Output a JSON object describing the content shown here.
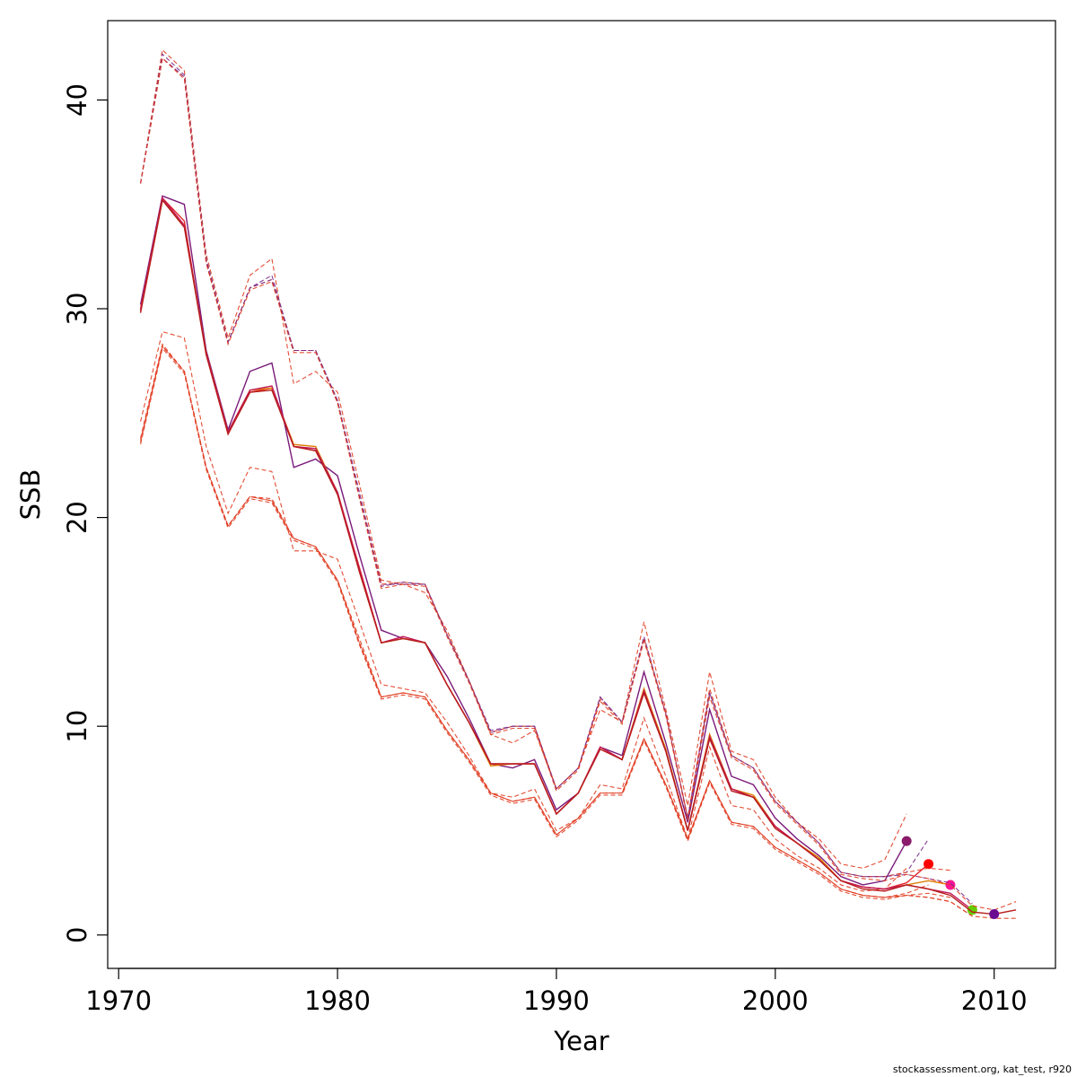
{
  "chart_data": {
    "type": "line",
    "xlabel": "Year",
    "ylabel": "SSB",
    "xlim": [
      1969.5,
      2012.8
    ],
    "ylim": [
      -1.6,
      43.8
    ],
    "xticks": [
      1970,
      1980,
      1990,
      2000,
      2010
    ],
    "yticks": [
      0,
      10,
      20,
      30,
      40
    ],
    "grid": false,
    "legend": "none",
    "colors": {
      "solid": "#e3242b",
      "dashed": "#e03a1e",
      "purple": "#7a2a8a",
      "orange": "#e07b00"
    },
    "years": [
      1971,
      1972,
      1973,
      1974,
      1975,
      1976,
      1977,
      1978,
      1979,
      1980,
      1981,
      1982,
      1983,
      1984,
      1985,
      1986,
      1987,
      1988,
      1989,
      1990,
      1991,
      1992,
      1993,
      1994,
      1995,
      1996,
      1997,
      1998,
      1999,
      2000,
      2001,
      2002,
      2003,
      2004,
      2005,
      2006,
      2007,
      2008,
      2009,
      2010,
      2011
    ],
    "series": [
      {
        "style": "solid",
        "end_year": 2006,
        "color": "#7a1a7a",
        "marker": true,
        "marker_color": "#8b1a6b",
        "values": [
          30.2,
          35.4,
          35.0,
          28.0,
          24.2,
          27.0,
          27.4,
          22.4,
          22.8,
          22.0,
          18.2,
          14.6,
          14.2,
          14.0,
          12.4,
          10.4,
          8.2,
          8.0,
          8.4,
          6.0,
          6.8,
          9.0,
          8.6,
          12.6,
          9.2,
          5.4,
          10.8,
          7.6,
          7.2,
          5.6,
          4.6,
          3.8,
          2.8,
          2.4,
          2.6,
          4.5
        ],
        "lower": [
          24.6,
          28.9,
          28.6,
          23.4,
          20.2,
          22.4,
          22.2,
          18.4,
          18.4,
          18.0,
          15.0,
          12.0,
          11.8,
          11.6,
          10.2,
          8.6,
          6.8,
          6.6,
          7.0,
          5.0,
          5.6,
          7.2,
          7.0,
          10.4,
          7.6,
          4.6,
          9.0,
          6.2,
          6.0,
          4.6,
          3.8,
          3.2,
          2.4,
          2.1,
          2.2,
          3.2
        ],
        "upper": [
          36.0,
          42.4,
          41.4,
          32.6,
          28.6,
          31.6,
          32.4,
          26.4,
          27.0,
          26.0,
          21.6,
          17.0,
          16.8,
          16.4,
          14.6,
          12.2,
          9.6,
          9.2,
          9.8,
          7.0,
          8.0,
          10.8,
          10.2,
          15.0,
          10.8,
          6.2,
          12.6,
          8.8,
          8.4,
          6.6,
          5.4,
          4.6,
          3.4,
          3.2,
          3.6,
          5.8
        ]
      },
      {
        "style": "solid",
        "end_year": 2007,
        "color": "#e3242b",
        "marker": true,
        "marker_color": "#ff0000",
        "values": [
          30.0,
          35.3,
          34.2,
          27.8,
          24.0,
          26.0,
          26.2,
          23.4,
          23.2,
          21.2,
          17.6,
          14.0,
          14.2,
          14.0,
          12.0,
          10.2,
          8.2,
          8.2,
          8.2,
          5.8,
          6.8,
          9.0,
          8.4,
          11.6,
          8.8,
          5.0,
          9.6,
          7.0,
          6.6,
          5.2,
          4.4,
          3.6,
          2.6,
          2.3,
          2.2,
          2.5,
          3.4
        ],
        "lower": [
          23.8,
          28.3,
          27.0,
          22.4,
          19.6,
          21.0,
          20.9,
          19.0,
          18.6,
          17.0,
          14.2,
          11.4,
          11.6,
          11.4,
          9.8,
          8.4,
          6.8,
          6.4,
          6.6,
          4.8,
          5.6,
          6.8,
          6.8,
          9.4,
          7.2,
          4.6,
          7.4,
          5.4,
          5.2,
          4.2,
          3.6,
          3.0,
          2.2,
          1.9,
          1.8,
          2.0,
          2.4
        ],
        "upper": [
          36.0,
          42.2,
          41.2,
          32.4,
          28.4,
          31.0,
          31.6,
          28.0,
          28.0,
          25.6,
          21.2,
          16.8,
          16.8,
          16.8,
          14.4,
          12.2,
          9.8,
          10.0,
          10.0,
          7.0,
          8.0,
          11.4,
          10.2,
          14.2,
          10.6,
          5.6,
          11.6,
          8.6,
          8.0,
          6.4,
          5.4,
          4.4,
          3.0,
          2.8,
          2.8,
          3.0,
          4.6
        ]
      },
      {
        "style": "solid",
        "end_year": 2008,
        "color": "#e07b00",
        "marker": true,
        "marker_color": "#ff1493",
        "values": [
          29.9,
          35.2,
          34.0,
          27.9,
          24.1,
          26.1,
          26.2,
          23.5,
          23.4,
          21.2,
          17.4,
          14.0,
          14.2,
          14.0,
          12.0,
          10.2,
          8.1,
          8.2,
          8.2,
          5.8,
          6.8,
          9.0,
          8.4,
          11.8,
          8.9,
          5.0,
          9.6,
          7.0,
          6.7,
          5.2,
          4.4,
          3.7,
          2.6,
          2.3,
          2.2,
          2.4,
          2.6,
          2.4
        ],
        "lower": [
          23.7,
          28.2,
          27.0,
          22.4,
          19.6,
          21.0,
          20.8,
          19.0,
          18.6,
          17.0,
          14.0,
          11.4,
          11.6,
          11.4,
          9.8,
          8.4,
          6.8,
          6.4,
          6.6,
          4.8,
          5.6,
          6.8,
          6.8,
          9.4,
          7.2,
          4.6,
          7.4,
          5.4,
          5.2,
          4.2,
          3.6,
          3.0,
          2.2,
          1.9,
          1.8,
          1.9,
          2.0,
          1.8
        ],
        "upper": [
          36.0,
          42.0,
          41.1,
          32.2,
          28.4,
          31.0,
          31.4,
          28.0,
          28.0,
          25.5,
          21.0,
          16.8,
          16.9,
          16.8,
          14.4,
          12.2,
          9.7,
          10.0,
          10.0,
          7.0,
          8.0,
          11.3,
          10.2,
          14.2,
          10.6,
          5.6,
          11.8,
          8.6,
          8.0,
          6.4,
          5.4,
          4.4,
          3.0,
          2.8,
          2.8,
          3.0,
          3.2,
          3.1
        ]
      },
      {
        "style": "solid",
        "end_year": 2009,
        "color": "#c2185b",
        "marker": true,
        "marker_color": "#66cc00",
        "values": [
          29.9,
          35.3,
          34.0,
          27.9,
          24.1,
          26.1,
          26.3,
          23.4,
          23.3,
          21.2,
          17.5,
          14.0,
          14.3,
          14.0,
          12.0,
          10.2,
          8.2,
          8.2,
          8.2,
          5.8,
          6.8,
          9.0,
          8.4,
          11.7,
          8.8,
          5.0,
          9.5,
          7.0,
          6.6,
          5.2,
          4.4,
          3.6,
          2.6,
          2.3,
          2.2,
          2.4,
          2.2,
          2.0,
          1.2
        ],
        "lower": [
          23.6,
          28.2,
          27.0,
          22.4,
          19.6,
          21.0,
          20.8,
          19.0,
          18.6,
          17.0,
          14.0,
          11.4,
          11.6,
          11.4,
          9.8,
          8.4,
          6.8,
          6.4,
          6.6,
          4.8,
          5.6,
          6.8,
          6.8,
          9.4,
          7.2,
          4.6,
          7.4,
          5.4,
          5.2,
          4.2,
          3.6,
          3.0,
          2.2,
          1.9,
          1.8,
          1.9,
          1.8,
          1.6,
          0.9
        ],
        "upper": [
          36.0,
          42.0,
          41.1,
          32.3,
          28.4,
          31.0,
          31.4,
          28.0,
          28.0,
          25.6,
          21.0,
          16.7,
          16.9,
          16.8,
          14.4,
          12.2,
          9.7,
          10.0,
          10.0,
          7.0,
          8.0,
          11.4,
          10.2,
          14.3,
          10.6,
          5.6,
          11.6,
          8.6,
          8.0,
          6.4,
          5.4,
          4.4,
          3.0,
          2.8,
          2.8,
          2.9,
          2.7,
          2.5,
          1.5
        ]
      },
      {
        "style": "solid",
        "end_year": 2011,
        "color": "#b71c1c",
        "marker": true,
        "marker_year": 2010,
        "marker_color": "#6a0d91",
        "values": [
          29.8,
          35.2,
          33.9,
          27.8,
          24.0,
          26.0,
          26.1,
          23.4,
          23.2,
          21.1,
          17.4,
          14.0,
          14.2,
          14.0,
          12.0,
          10.2,
          8.2,
          8.2,
          8.2,
          5.8,
          6.8,
          8.9,
          8.4,
          11.6,
          8.8,
          5.0,
          9.4,
          6.9,
          6.6,
          5.1,
          4.4,
          3.6,
          2.6,
          2.2,
          2.1,
          2.4,
          2.2,
          1.9,
          1.1,
          1.0,
          1.2
        ],
        "lower": [
          23.5,
          28.1,
          26.9,
          22.3,
          19.5,
          20.9,
          20.7,
          18.9,
          18.5,
          16.9,
          13.9,
          11.3,
          11.5,
          11.3,
          9.7,
          8.3,
          6.7,
          6.3,
          6.5,
          4.7,
          5.5,
          6.7,
          6.7,
          9.3,
          7.1,
          4.5,
          7.3,
          5.3,
          5.1,
          4.1,
          3.5,
          2.9,
          2.1,
          1.8,
          1.7,
          1.9,
          1.8,
          1.6,
          0.9,
          0.8,
          0.8
        ],
        "upper": [
          36.0,
          42.0,
          41.0,
          32.2,
          28.3,
          30.9,
          31.3,
          27.9,
          27.9,
          25.5,
          20.9,
          16.6,
          16.8,
          16.7,
          14.3,
          12.1,
          9.6,
          9.9,
          9.9,
          6.9,
          7.9,
          11.2,
          10.1,
          14.1,
          10.5,
          5.5,
          11.4,
          8.5,
          7.9,
          6.3,
          5.3,
          4.3,
          2.9,
          2.7,
          2.6,
          2.9,
          2.7,
          2.4,
          1.4,
          1.2,
          1.6
        ]
      }
    ]
  },
  "footnote": "stockassessment.org, kat_test, r920"
}
